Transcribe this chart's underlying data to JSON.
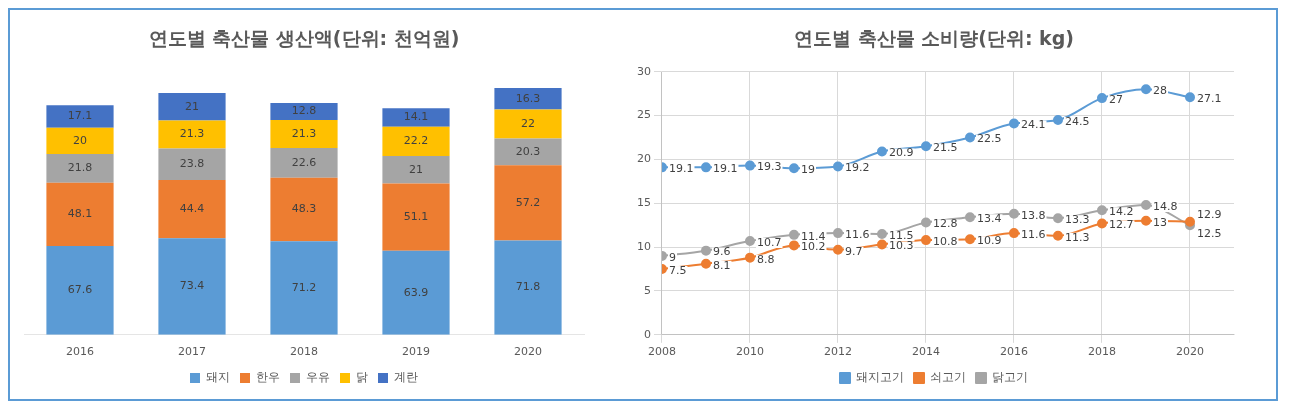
{
  "chart_data": [
    {
      "type": "bar",
      "title": "연도별 축산물 생산액(단위: 천억원)",
      "categories": [
        "2016",
        "2017",
        "2018",
        "2019",
        "2020"
      ],
      "stacked": true,
      "data_labels": true,
      "grid": false,
      "legend": "bottom",
      "series": [
        {
          "name": "돼지",
          "color": "#5b9bd5",
          "values": [
            67.6,
            73.4,
            71.2,
            63.9,
            71.8
          ]
        },
        {
          "name": "한우",
          "color": "#ed7d31",
          "values": [
            48.1,
            44.4,
            48.3,
            51.1,
            57.2
          ]
        },
        {
          "name": "우유",
          "color": "#a5a5a5",
          "values": [
            21.8,
            23.8,
            22.6,
            21,
            20.3
          ]
        },
        {
          "name": "닭",
          "color": "#ffc000",
          "values": [
            20,
            21.3,
            21.3,
            22.2,
            22
          ]
        },
        {
          "name": "계란",
          "color": "#4472c4",
          "values": [
            17.1,
            21,
            12.8,
            14.1,
            16.3
          ]
        }
      ]
    },
    {
      "type": "line",
      "title": "연도별 축산물 소비량(단위: kg)",
      "x": [
        2008,
        2009,
        2010,
        2011,
        2012,
        2013,
        2014,
        2015,
        2016,
        2017,
        2018,
        2019,
        2020
      ],
      "xlim": [
        2008,
        2021
      ],
      "xticks": [
        2008,
        2010,
        2012,
        2014,
        2016,
        2018,
        2020
      ],
      "ylim": [
        0,
        30
      ],
      "yticks": [
        0,
        5,
        10,
        15,
        20,
        25,
        30
      ],
      "grid": true,
      "marker": "circle",
      "data_labels": true,
      "legend": "bottom",
      "series": [
        {
          "name": "돼지고기",
          "color": "#5b9bd5",
          "values": [
            19.1,
            19.1,
            19.3,
            19,
            19.2,
            20.9,
            21.5,
            22.5,
            24.1,
            24.5,
            27,
            28,
            27.1
          ]
        },
        {
          "name": "쇠고기",
          "color": "#ed7d31",
          "values": [
            7.5,
            8.1,
            8.8,
            10.2,
            9.7,
            10.3,
            10.8,
            10.9,
            11.6,
            11.3,
            12.7,
            13,
            12.9
          ]
        },
        {
          "name": "닭고기",
          "color": "#a5a5a5",
          "values": [
            9,
            9.6,
            10.7,
            11.4,
            11.6,
            11.5,
            12.8,
            13.4,
            13.8,
            13.3,
            14.2,
            14.8,
            12.5
          ]
        }
      ]
    }
  ]
}
